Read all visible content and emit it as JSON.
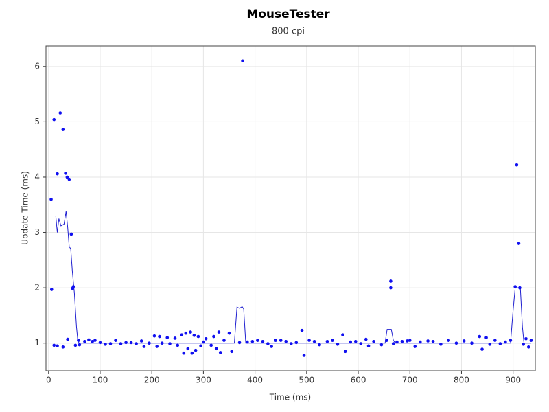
{
  "chart_data": {
    "type": "scatter",
    "title": "MouseTester",
    "subtitle": "800 cpi",
    "x_label": "Time (ms)",
    "y_label": "Update Time (ms)",
    "xlim": [
      -5,
      943
    ],
    "ylim": [
      0.5,
      6.37
    ],
    "xticks": [
      0,
      100,
      200,
      300,
      400,
      500,
      600,
      700,
      800,
      900
    ],
    "yticks": [
      1,
      2,
      3,
      4,
      5,
      6
    ],
    "grid": true,
    "series": [
      {
        "type": "line",
        "color": "#1f1fd0",
        "x": [
          14,
          17,
          20,
          24,
          30,
          34,
          37,
          40,
          43,
          46,
          50,
          54,
          57,
          60,
          100,
          200,
          300,
          360,
          365,
          370,
          375,
          378,
          382,
          500,
          652,
          656,
          664,
          668,
          672,
          895,
          900,
          904,
          914,
          918,
          921,
          935
        ],
        "values": [
          3.3,
          3.0,
          3.25,
          3.12,
          3.15,
          3.38,
          3.1,
          2.75,
          2.7,
          2.3,
          1.9,
          1.3,
          1.02,
          1.0,
          1.0,
          1.0,
          1.0,
          1.0,
          1.65,
          1.63,
          1.66,
          1.62,
          1.0,
          1.0,
          1.0,
          1.25,
          1.25,
          1.05,
          1.0,
          1.0,
          1.6,
          2.0,
          2.0,
          1.3,
          1.0,
          1.0
        ]
      },
      {
        "type": "scatter",
        "color": "#1010f0",
        "x": [
          5,
          6,
          10.6,
          17,
          22.6,
          28,
          33,
          36,
          40,
          44,
          46.5,
          48,
          37,
          10.6,
          17,
          28,
          52,
          58,
          60,
          376,
          663,
          663,
          907,
          911,
          904,
          913,
          491,
          495,
          70,
          78,
          85,
          90,
          100,
          110,
          120,
          130,
          140,
          150,
          160,
          170,
          180,
          185,
          195,
          205,
          210,
          215,
          220,
          230,
          235,
          245,
          250,
          258,
          262,
          266,
          270,
          275,
          278,
          282,
          285,
          290,
          295,
          300,
          305,
          315,
          320,
          325,
          330,
          333,
          340,
          350,
          355,
          370,
          385,
          395,
          405,
          415,
          425,
          432,
          440,
          450,
          460,
          470,
          480,
          505,
          515,
          525,
          540,
          550,
          560,
          570,
          575,
          585,
          595,
          605,
          615,
          620,
          630,
          645,
          655,
          668,
          675,
          685,
          695,
          700,
          710,
          720,
          735,
          745,
          760,
          775,
          790,
          805,
          820,
          835,
          840,
          848,
          855,
          865,
          875,
          885,
          895,
          920,
          925,
          930,
          935
        ],
        "values": [
          3.6,
          1.97,
          5.04,
          4.06,
          5.16,
          4.86,
          4.07,
          4.0,
          3.96,
          2.97,
          1.99,
          2.02,
          1.07,
          0.96,
          0.95,
          0.93,
          0.96,
          1.05,
          0.97,
          6.1,
          2.12,
          2.0,
          4.22,
          2.8,
          2.02,
          2.0,
          1.23,
          0.78,
          1.03,
          1.06,
          1.03,
          1.05,
          1.01,
          0.98,
          0.99,
          1.05,
          0.99,
          1.01,
          1.01,
          0.99,
          1.04,
          0.94,
          1.0,
          1.13,
          0.94,
          1.12,
          1.0,
          1.1,
          0.99,
          1.09,
          0.96,
          1.15,
          0.82,
          1.18,
          0.9,
          1.2,
          0.82,
          1.14,
          0.87,
          1.12,
          0.95,
          1.02,
          1.08,
          0.96,
          1.12,
          0.9,
          1.2,
          0.83,
          1.05,
          1.18,
          0.85,
          1.01,
          1.02,
          1.03,
          1.05,
          1.03,
          0.99,
          0.94,
          1.05,
          1.05,
          1.03,
          0.99,
          1.01,
          1.05,
          1.03,
          0.97,
          1.03,
          1.05,
          0.98,
          1.15,
          0.85,
          1.02,
          1.03,
          0.99,
          1.07,
          0.95,
          1.03,
          0.97,
          1.05,
          0.99,
          1.02,
          1.03,
          1.04,
          1.05,
          0.94,
          1.02,
          1.04,
          1.03,
          0.98,
          1.05,
          1.0,
          1.04,
          1.0,
          1.12,
          0.89,
          1.1,
          0.98,
          1.05,
          0.99,
          1.02,
          1.05,
          0.98,
          1.08,
          0.93,
          1.05
        ]
      }
    ]
  }
}
